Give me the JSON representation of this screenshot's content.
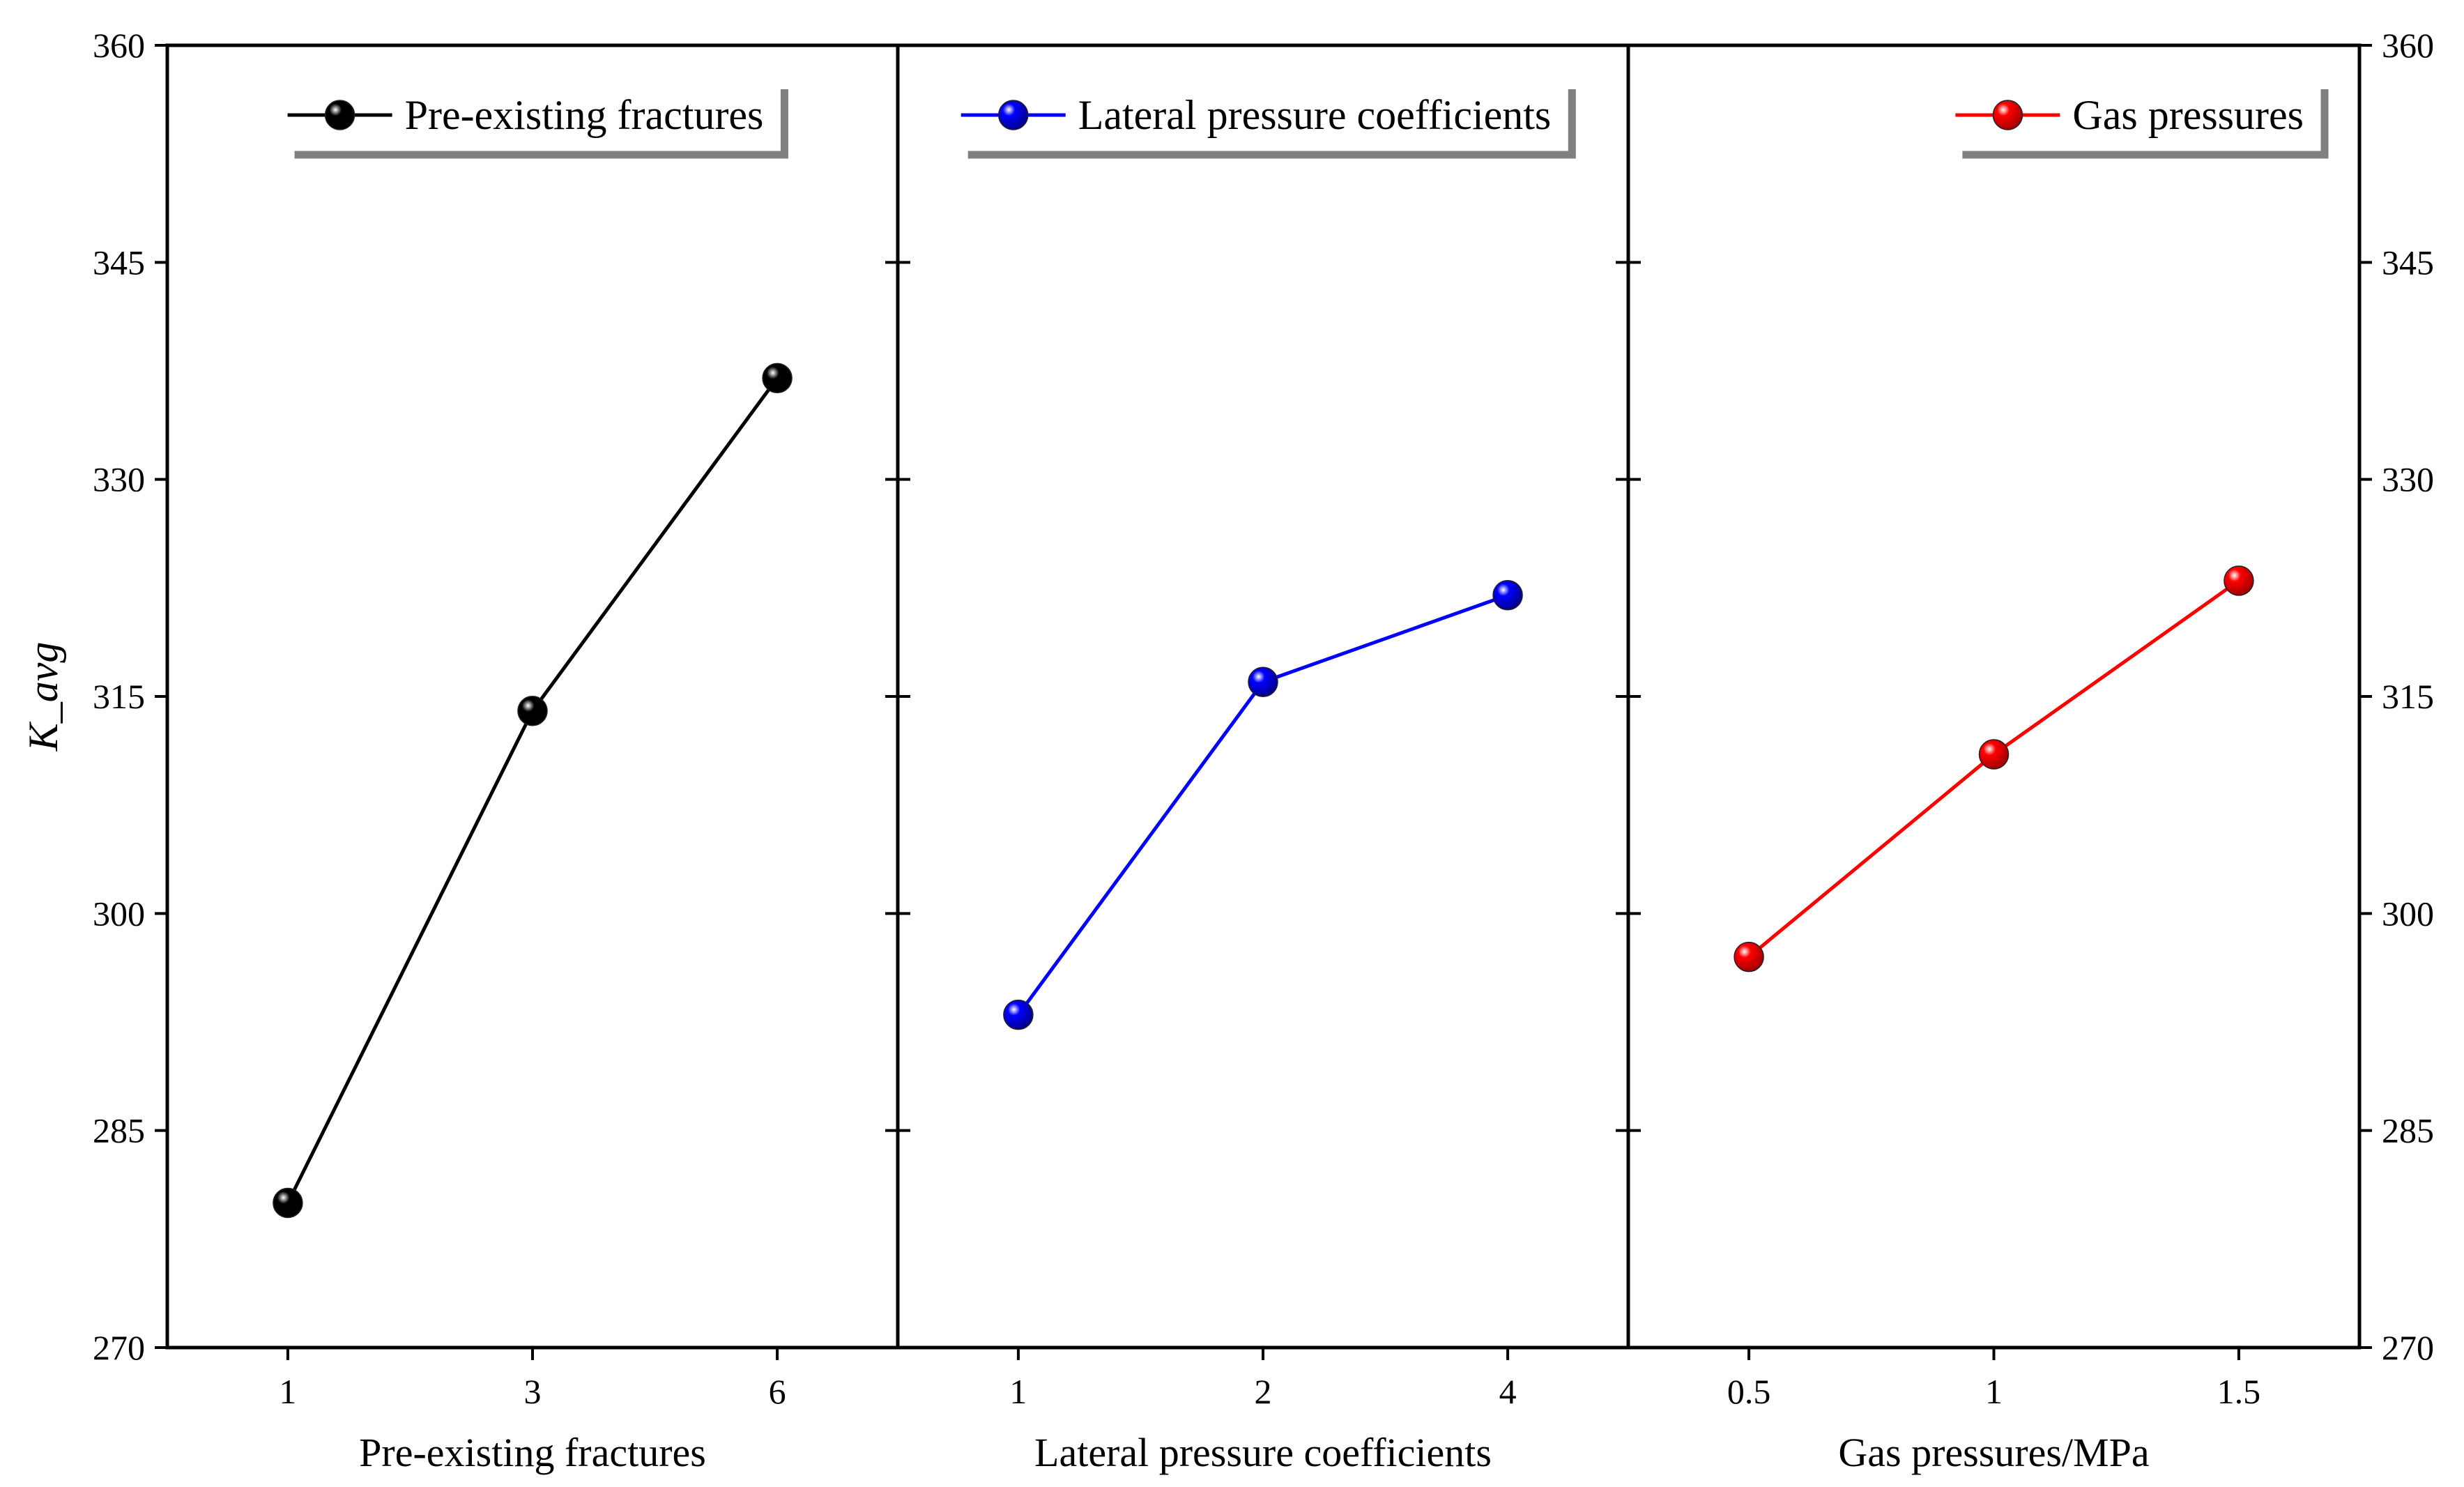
{
  "chart_data": {
    "type": "line",
    "ylabel": "K_avg",
    "ylim": [
      270,
      360
    ],
    "yticks": [
      270,
      285,
      300,
      315,
      330,
      345,
      360
    ],
    "grid": false,
    "panels": [
      {
        "xlabel": "Pre-existing fractures",
        "categories": [
          "1",
          "3",
          "6"
        ],
        "series": [
          {
            "name": "Pre-existing fractures",
            "color": "#000000",
            "values": [
              280,
              314,
              337
            ]
          }
        ],
        "legend": "top-center"
      },
      {
        "xlabel": "Lateral pressure coefficients",
        "categories": [
          "1",
          "2",
          "4"
        ],
        "series": [
          {
            "name": "Lateral pressure coefficients",
            "color": "#0000ff",
            "values": [
              293,
              316,
              322
            ]
          }
        ],
        "legend": "top-center"
      },
      {
        "xlabel": "Gas pressures/MPa",
        "categories": [
          "0.5",
          "1",
          "1.5"
        ],
        "series": [
          {
            "name": "Gas pressures",
            "color": "#ff0000",
            "values": [
              297,
              311,
              323
            ]
          }
        ],
        "legend": "top-right"
      }
    ]
  }
}
